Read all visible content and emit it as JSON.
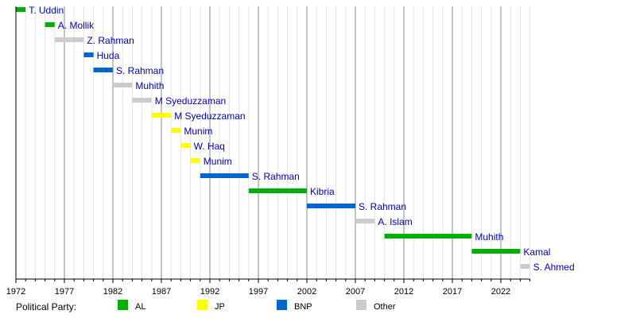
{
  "chart_data": {
    "type": "timeline",
    "xlim": [
      1972,
      2025
    ],
    "x_ticks": [
      1972,
      1977,
      1982,
      1987,
      1992,
      1997,
      2002,
      2007,
      2012,
      2017,
      2022
    ],
    "grid": {
      "major_every_years": 5,
      "minor_every_years": 1
    },
    "legend_title": "Political Party:",
    "legend_placement": "bottom",
    "parties": [
      {
        "name": "AL",
        "color": "#00b000"
      },
      {
        "name": "JP",
        "color": "#ffff00"
      },
      {
        "name": "BNP",
        "color": "#0066cc"
      },
      {
        "name": "Other",
        "color": "#cccccc"
      }
    ],
    "label_color": "#0000bb",
    "bars": [
      {
        "label": "T. Uddin",
        "party": "AL",
        "start": 1972,
        "end": 1973
      },
      {
        "label": "A. Mollik",
        "party": "AL",
        "start": 1975,
        "end": 1976
      },
      {
        "label": "Z. Rahman",
        "party": "Other",
        "start": 1976,
        "end": 1979
      },
      {
        "label": "Huda",
        "party": "BNP",
        "start": 1979,
        "end": 1980
      },
      {
        "label": "S. Rahman",
        "party": "BNP",
        "start": 1980,
        "end": 1982
      },
      {
        "label": "Muhith",
        "party": "Other",
        "start": 1982,
        "end": 1984
      },
      {
        "label": "M Syeduzzaman",
        "party": "Other",
        "start": 1984,
        "end": 1986
      },
      {
        "label": "M Syeduzzaman",
        "party": "JP",
        "start": 1986,
        "end": 1988
      },
      {
        "label": "Munim",
        "party": "JP",
        "start": 1988,
        "end": 1989
      },
      {
        "label": "W. Haq",
        "party": "JP",
        "start": 1989,
        "end": 1990
      },
      {
        "label": "Munim",
        "party": "JP",
        "start": 1990,
        "end": 1991
      },
      {
        "label": "S. Rahman",
        "party": "BNP",
        "start": 1991,
        "end": 1996
      },
      {
        "label": "Kibria",
        "party": "AL",
        "start": 1996,
        "end": 2002
      },
      {
        "label": "S. Rahman",
        "party": "BNP",
        "start": 2002,
        "end": 2007
      },
      {
        "label": "A. Islam",
        "party": "Other",
        "start": 2007,
        "end": 2009
      },
      {
        "label": "Muhith",
        "party": "AL",
        "start": 2010,
        "end": 2019
      },
      {
        "label": "Kamal",
        "party": "AL",
        "start": 2019,
        "end": 2024
      },
      {
        "label": "S. Ahmed",
        "party": "Other",
        "start": 2024,
        "end": 2025
      }
    ]
  }
}
